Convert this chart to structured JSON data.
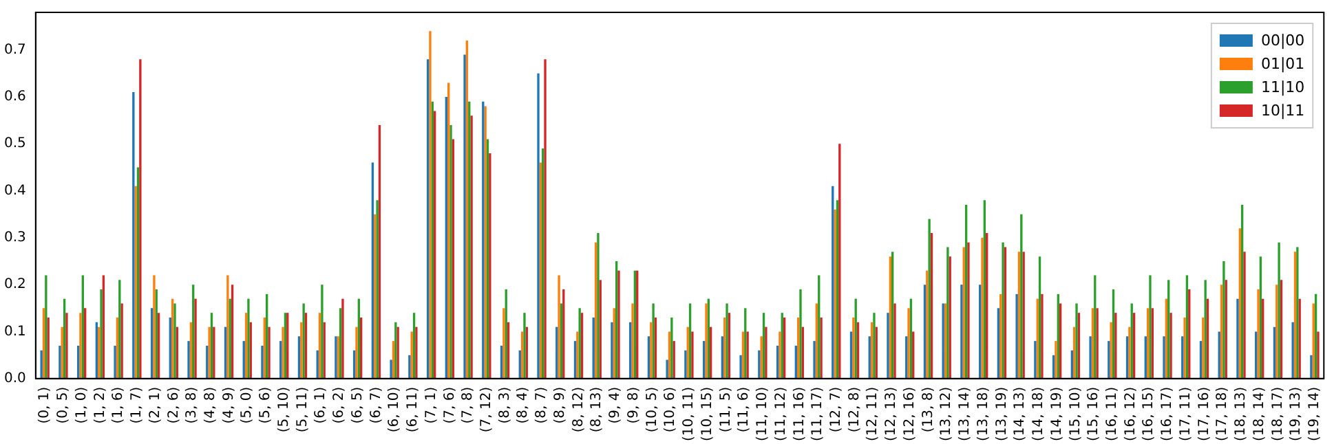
{
  "chart_data": {
    "type": "bar",
    "categories": [
      "(0, 1)",
      "(0, 5)",
      "(1, 0)",
      "(1, 2)",
      "(1, 6)",
      "(1, 7)",
      "(2, 1)",
      "(2, 6)",
      "(3, 8)",
      "(4, 8)",
      "(4, 9)",
      "(5, 0)",
      "(5, 6)",
      "(5, 10)",
      "(5, 11)",
      "(6, 1)",
      "(6, 2)",
      "(6, 5)",
      "(6, 7)",
      "(6, 10)",
      "(6, 11)",
      "(7, 1)",
      "(7, 6)",
      "(7, 8)",
      "(7, 12)",
      "(8, 3)",
      "(8, 4)",
      "(8, 7)",
      "(8, 9)",
      "(8, 12)",
      "(8, 13)",
      "(9, 4)",
      "(9, 8)",
      "(10, 5)",
      "(10, 6)",
      "(10, 11)",
      "(10, 15)",
      "(11, 5)",
      "(11, 6)",
      "(11, 10)",
      "(11, 12)",
      "(11, 16)",
      "(11, 17)",
      "(12, 7)",
      "(12, 8)",
      "(12, 11)",
      "(12, 13)",
      "(12, 16)",
      "(13, 8)",
      "(13, 12)",
      "(13, 14)",
      "(13, 18)",
      "(13, 19)",
      "(14, 13)",
      "(14, 18)",
      "(14, 19)",
      "(15, 10)",
      "(15, 16)",
      "(16, 11)",
      "(16, 12)",
      "(16, 15)",
      "(16, 17)",
      "(17, 11)",
      "(17, 16)",
      "(17, 18)",
      "(18, 13)",
      "(18, 14)",
      "(18, 17)",
      "(19, 13)",
      "(19, 14)"
    ],
    "series": [
      {
        "name": "00|00",
        "color": "#1f77b4",
        "values": [
          0.06,
          0.07,
          0.07,
          0.12,
          0.07,
          0.61,
          0.15,
          0.13,
          0.08,
          0.07,
          0.11,
          0.08,
          0.07,
          0.08,
          0.09,
          0.06,
          0.09,
          0.06,
          0.46,
          0.04,
          0.05,
          0.68,
          0.6,
          0.69,
          0.59,
          0.07,
          0.06,
          0.65,
          0.11,
          0.08,
          0.13,
          0.12,
          0.12,
          0.09,
          0.04,
          0.06,
          0.08,
          0.09,
          0.05,
          0.06,
          0.07,
          0.07,
          0.08,
          0.41,
          0.1,
          0.09,
          0.14,
          0.09,
          0.2,
          0.16,
          0.2,
          0.2,
          0.15,
          0.18,
          0.08,
          0.05,
          0.06,
          0.09,
          0.08,
          0.09,
          0.09,
          0.09,
          0.09,
          0.08,
          0.1,
          0.17,
          0.1,
          0.11,
          0.12,
          0.05
        ]
      },
      {
        "name": "01|01",
        "color": "#ff7f0e",
        "values": [
          0.15,
          0.11,
          0.14,
          0.11,
          0.13,
          0.41,
          0.22,
          0.17,
          0.12,
          0.11,
          0.22,
          0.14,
          0.13,
          0.11,
          0.12,
          0.14,
          0.09,
          0.11,
          0.35,
          0.08,
          0.1,
          0.74,
          0.63,
          0.72,
          0.58,
          0.15,
          0.1,
          0.46,
          0.22,
          0.1,
          0.29,
          0.15,
          0.16,
          0.12,
          0.1,
          0.11,
          0.16,
          0.13,
          0.1,
          0.09,
          0.1,
          0.13,
          0.16,
          0.36,
          0.13,
          0.12,
          0.26,
          0.15,
          0.23,
          0.16,
          0.28,
          0.3,
          0.18,
          0.27,
          0.17,
          0.08,
          0.11,
          0.15,
          0.12,
          0.11,
          0.15,
          0.17,
          0.13,
          0.13,
          0.2,
          0.32,
          0.19,
          0.2,
          0.27,
          0.16
        ]
      },
      {
        "name": "11|10",
        "color": "#2ca02c",
        "values": [
          0.22,
          0.17,
          0.22,
          0.19,
          0.21,
          0.45,
          0.19,
          0.16,
          0.2,
          0.14,
          0.17,
          0.17,
          0.18,
          0.14,
          0.16,
          0.2,
          0.15,
          0.17,
          0.38,
          0.12,
          0.14,
          0.59,
          0.54,
          0.59,
          0.51,
          0.19,
          0.14,
          0.49,
          0.16,
          0.15,
          0.31,
          0.25,
          0.23,
          0.16,
          0.13,
          0.16,
          0.17,
          0.16,
          0.15,
          0.14,
          0.14,
          0.19,
          0.22,
          0.38,
          0.17,
          0.14,
          0.27,
          0.17,
          0.34,
          0.28,
          0.37,
          0.38,
          0.29,
          0.35,
          0.26,
          0.18,
          0.16,
          0.22,
          0.19,
          0.16,
          0.22,
          0.21,
          0.22,
          0.21,
          0.25,
          0.37,
          0.26,
          0.29,
          0.28,
          0.18
        ]
      },
      {
        "name": "10|11",
        "color": "#d62728",
        "values": [
          0.13,
          0.14,
          0.15,
          0.22,
          0.16,
          0.68,
          0.14,
          0.11,
          0.17,
          0.11,
          0.2,
          0.12,
          0.11,
          0.14,
          0.14,
          0.12,
          0.17,
          0.13,
          0.54,
          0.11,
          0.11,
          0.57,
          0.51,
          0.56,
          0.48,
          0.12,
          0.11,
          0.68,
          0.19,
          0.14,
          0.21,
          0.23,
          0.23,
          0.13,
          0.08,
          0.1,
          0.11,
          0.14,
          0.1,
          0.11,
          0.13,
          0.11,
          0.13,
          0.5,
          0.12,
          0.11,
          0.16,
          0.1,
          0.31,
          0.26,
          0.29,
          0.31,
          0.28,
          0.27,
          0.18,
          0.16,
          0.14,
          0.15,
          0.14,
          0.14,
          0.15,
          0.14,
          0.19,
          0.17,
          0.21,
          0.27,
          0.17,
          0.21,
          0.17,
          0.1
        ]
      }
    ],
    "ylim": [
      0,
      0.78
    ],
    "yticks": [
      {
        "value": 0,
        "label": "0.0"
      },
      0.1,
      0.2,
      0.3,
      0.4,
      0.5,
      0.6,
      0.7
    ],
    "grid": false,
    "legend": "top right"
  }
}
